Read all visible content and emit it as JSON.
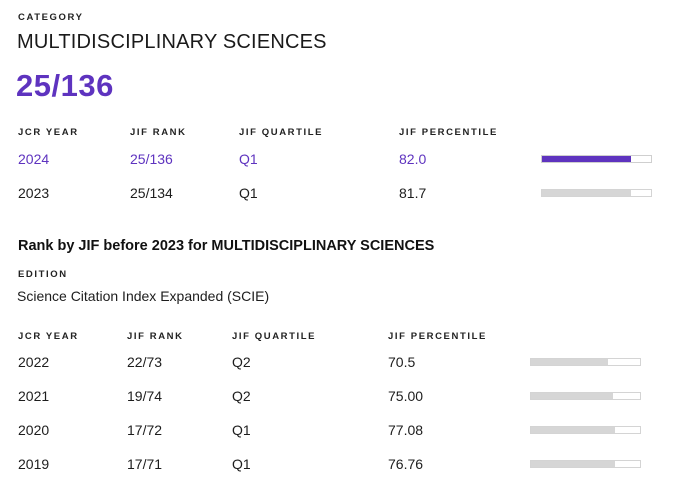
{
  "category": {
    "eyebrow": "CATEGORY",
    "title": "MULTIDISCIPLINARY SCIENCES",
    "rank": "25/136"
  },
  "current_table": {
    "headers": [
      "JCR YEAR",
      "JIF RANK",
      "JIF QUARTILE",
      "JIF PERCENTILE"
    ],
    "rows": [
      {
        "year": "2024",
        "rank": "25/136",
        "quartile": "Q1",
        "percentile": "82.0",
        "percentile_value": 82.0,
        "highlight": true
      },
      {
        "year": "2023",
        "rank": "25/134",
        "quartile": "Q1",
        "percentile": "81.7",
        "percentile_value": 81.7,
        "highlight": false
      }
    ]
  },
  "legacy": {
    "title": "Rank by JIF before 2023 for MULTIDISCIPLINARY SCIENCES",
    "edition_label": "EDITION",
    "edition_value": "Science Citation Index Expanded (SCIE)",
    "headers": [
      "JCR YEAR",
      "JIF RANK",
      "JIF QUARTILE",
      "JIF PERCENTILE"
    ],
    "rows": [
      {
        "year": "2022",
        "rank": "22/73",
        "quartile": "Q2",
        "percentile": "70.5",
        "percentile_value": 70.5
      },
      {
        "year": "2021",
        "rank": "19/74",
        "quartile": "Q2",
        "percentile": "75.00",
        "percentile_value": 75.0
      },
      {
        "year": "2020",
        "rank": "17/72",
        "quartile": "Q1",
        "percentile": "77.08",
        "percentile_value": 77.08
      },
      {
        "year": "2019",
        "rank": "17/71",
        "quartile": "Q1",
        "percentile": "76.76",
        "percentile_value": 76.76
      }
    ]
  },
  "colors": {
    "accent": "#5e33bf",
    "bar_track": "#d6d6d6"
  }
}
